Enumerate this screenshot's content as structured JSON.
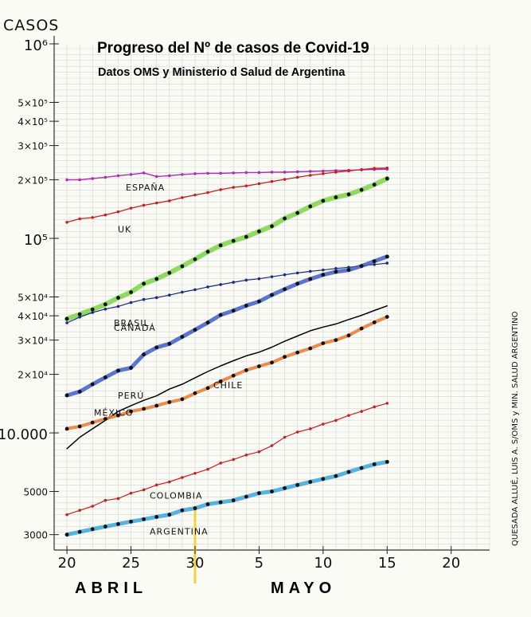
{
  "chart_data": {
    "type": "line",
    "title": "Progreso del Nº de casos de Covid-19",
    "subtitle": "Datos OMS y Ministerio d Salud de Argentina",
    "ylabel": "CASOS",
    "yscale": "log",
    "ylim": [
      2500,
      1000000
    ],
    "y_ticks": [
      {
        "value": 1000000,
        "label": "10⁶"
      },
      {
        "value": 500000,
        "label": "5×10⁵"
      },
      {
        "value": 400000,
        "label": "4×10⁵"
      },
      {
        "value": 300000,
        "label": "3×10⁵"
      },
      {
        "value": 200000,
        "label": "2×10⁵"
      },
      {
        "value": 100000,
        "label": "10⁵"
      },
      {
        "value": 50000,
        "label": "5×10⁴"
      },
      {
        "value": 40000,
        "label": "4×10⁴"
      },
      {
        "value": 30000,
        "label": "3×10⁴"
      },
      {
        "value": 20000,
        "label": "2×10⁴"
      },
      {
        "value": 10000,
        "label": "10.000"
      },
      {
        "value": 5000,
        "label": "5000"
      },
      {
        "value": 3000,
        "label": "3000"
      }
    ],
    "x_ticks": [
      {
        "date": "2020-04-20",
        "label": "20"
      },
      {
        "date": "2020-04-25",
        "label": "25"
      },
      {
        "date": "2020-04-30",
        "label": "30"
      },
      {
        "date": "2020-05-05",
        "label": "5"
      },
      {
        "date": "2020-05-10",
        "label": "10"
      },
      {
        "date": "2020-05-15",
        "label": "15"
      },
      {
        "date": "2020-05-20",
        "label": "20"
      }
    ],
    "xlim": [
      "2020-04-19",
      "2020-05-23"
    ],
    "month_labels": [
      "ABRIL",
      "MAYO"
    ],
    "marker_date": "2020-04-30",
    "grid": true,
    "side_note": "QUESADA ALLUÉ, LUIS A. S/OMS y MIN. SALUD ARGENTINO",
    "series": [
      {
        "name": "ESPAÑA",
        "color": "#b22ab8",
        "width": 1.4,
        "dots": true,
        "points": [
          [
            "2020-04-20",
            200000
          ],
          [
            "2020-04-21",
            200000
          ],
          [
            "2020-04-22",
            203000
          ],
          [
            "2020-04-23",
            206000
          ],
          [
            "2020-04-24",
            210000
          ],
          [
            "2020-04-25",
            213000
          ],
          [
            "2020-04-26",
            217000
          ],
          [
            "2020-04-27",
            208000
          ],
          [
            "2020-04-28",
            210000
          ],
          [
            "2020-04-29",
            213000
          ],
          [
            "2020-04-30",
            215000
          ],
          [
            "2020-05-01",
            216000
          ],
          [
            "2020-05-02",
            216000
          ],
          [
            "2020-05-03",
            217000
          ],
          [
            "2020-05-04",
            218000
          ],
          [
            "2020-05-05",
            218000
          ],
          [
            "2020-05-06",
            219000
          ],
          [
            "2020-05-07",
            219000
          ],
          [
            "2020-05-08",
            220000
          ],
          [
            "2020-05-09",
            221000
          ],
          [
            "2020-05-10",
            222000
          ],
          [
            "2020-05-11",
            223000
          ],
          [
            "2020-05-12",
            224000
          ],
          [
            "2020-05-13",
            225000
          ],
          [
            "2020-05-14",
            226000
          ],
          [
            "2020-05-15",
            227000
          ]
        ]
      },
      {
        "name": "UK",
        "color": "#c82020",
        "width": 1.3,
        "dots": true,
        "points": [
          [
            "2020-04-20",
            121000
          ],
          [
            "2020-04-21",
            126000
          ],
          [
            "2020-04-22",
            128000
          ],
          [
            "2020-04-23",
            132000
          ],
          [
            "2020-04-24",
            137000
          ],
          [
            "2020-04-25",
            143000
          ],
          [
            "2020-04-26",
            148000
          ],
          [
            "2020-04-27",
            152000
          ],
          [
            "2020-04-28",
            156000
          ],
          [
            "2020-04-29",
            162000
          ],
          [
            "2020-04-30",
            167000
          ],
          [
            "2020-05-01",
            172000
          ],
          [
            "2020-05-02",
            178000
          ],
          [
            "2020-05-03",
            183000
          ],
          [
            "2020-05-04",
            186000
          ],
          [
            "2020-05-05",
            191000
          ],
          [
            "2020-05-06",
            196000
          ],
          [
            "2020-05-07",
            201000
          ],
          [
            "2020-05-08",
            206000
          ],
          [
            "2020-05-09",
            211000
          ],
          [
            "2020-05-10",
            215000
          ],
          [
            "2020-05-11",
            219000
          ],
          [
            "2020-05-12",
            222000
          ],
          [
            "2020-05-13",
            226000
          ],
          [
            "2020-05-14",
            229000
          ],
          [
            "2020-05-15",
            230000
          ]
        ]
      },
      {
        "name": "BRASIL",
        "color": "#7cd34a",
        "width": 6,
        "dots": true,
        "points": [
          [
            "2020-04-20",
            38600
          ],
          [
            "2020-04-21",
            40700
          ],
          [
            "2020-04-22",
            43100
          ],
          [
            "2020-04-23",
            45800
          ],
          [
            "2020-04-24",
            49500
          ],
          [
            "2020-04-25",
            52900
          ],
          [
            "2020-04-26",
            58500
          ],
          [
            "2020-04-27",
            61900
          ],
          [
            "2020-04-28",
            66500
          ],
          [
            "2020-04-29",
            71900
          ],
          [
            "2020-04-30",
            78100
          ],
          [
            "2020-05-01",
            85400
          ],
          [
            "2020-05-02",
            92100
          ],
          [
            "2020-05-03",
            97100
          ],
          [
            "2020-05-04",
            101800
          ],
          [
            "2020-05-05",
            108600
          ],
          [
            "2020-05-06",
            115500
          ],
          [
            "2020-05-07",
            126600
          ],
          [
            "2020-05-08",
            135100
          ],
          [
            "2020-05-09",
            146000
          ],
          [
            "2020-05-10",
            156000
          ],
          [
            "2020-05-11",
            162600
          ],
          [
            "2020-05-12",
            168300
          ],
          [
            "2020-05-13",
            177600
          ],
          [
            "2020-05-14",
            188900
          ],
          [
            "2020-05-15",
            202900
          ]
        ]
      },
      {
        "name": "CANADÁ",
        "color": "#1c2a80",
        "width": 1.2,
        "dots": true,
        "points": [
          [
            "2020-04-20",
            36800
          ],
          [
            "2020-04-21",
            39400
          ],
          [
            "2020-04-22",
            41600
          ],
          [
            "2020-04-23",
            43300
          ],
          [
            "2020-04-24",
            44700
          ],
          [
            "2020-04-25",
            46800
          ],
          [
            "2020-04-26",
            48500
          ],
          [
            "2020-04-27",
            49600
          ],
          [
            "2020-04-28",
            51100
          ],
          [
            "2020-04-29",
            52900
          ],
          [
            "2020-04-30",
            54500
          ],
          [
            "2020-05-01",
            56300
          ],
          [
            "2020-05-02",
            57900
          ],
          [
            "2020-05-03",
            59500
          ],
          [
            "2020-05-04",
            61000
          ],
          [
            "2020-05-05",
            62000
          ],
          [
            "2020-05-06",
            63500
          ],
          [
            "2020-05-07",
            65000
          ],
          [
            "2020-05-08",
            66400
          ],
          [
            "2020-05-09",
            67700
          ],
          [
            "2020-05-10",
            68800
          ],
          [
            "2020-05-11",
            70000
          ],
          [
            "2020-05-12",
            71000
          ],
          [
            "2020-05-13",
            72300
          ],
          [
            "2020-05-14",
            73400
          ],
          [
            "2020-05-15",
            74600
          ]
        ]
      },
      {
        "name": "PERÚ",
        "color": "#3e5ec9",
        "width": 5,
        "dots": true,
        "points": [
          [
            "2020-04-20",
            15600
          ],
          [
            "2020-04-21",
            16300
          ],
          [
            "2020-04-22",
            17800
          ],
          [
            "2020-04-23",
            19300
          ],
          [
            "2020-04-24",
            20900
          ],
          [
            "2020-04-25",
            21600
          ],
          [
            "2020-04-26",
            25300
          ],
          [
            "2020-04-27",
            27500
          ],
          [
            "2020-04-28",
            28700
          ],
          [
            "2020-04-29",
            31200
          ],
          [
            "2020-04-30",
            33900
          ],
          [
            "2020-05-01",
            36900
          ],
          [
            "2020-05-02",
            40400
          ],
          [
            "2020-05-03",
            42500
          ],
          [
            "2020-05-04",
            45100
          ],
          [
            "2020-05-05",
            47400
          ],
          [
            "2020-05-06",
            51200
          ],
          [
            "2020-05-07",
            54800
          ],
          [
            "2020-05-08",
            58500
          ],
          [
            "2020-05-09",
            61800
          ],
          [
            "2020-05-10",
            65000
          ],
          [
            "2020-05-11",
            67300
          ],
          [
            "2020-05-12",
            68800
          ],
          [
            "2020-05-13",
            72100
          ],
          [
            "2020-05-14",
            76300
          ],
          [
            "2020-05-15",
            80600
          ]
        ]
      },
      {
        "name": "MÉXICO",
        "color": "#000000",
        "width": 1.5,
        "dots": false,
        "points": [
          [
            "2020-04-20",
            8300
          ],
          [
            "2020-04-21",
            9500
          ],
          [
            "2020-04-22",
            10500
          ],
          [
            "2020-04-23",
            11600
          ],
          [
            "2020-04-24",
            12900
          ],
          [
            "2020-04-25",
            13800
          ],
          [
            "2020-04-26",
            14700
          ],
          [
            "2020-04-27",
            15500
          ],
          [
            "2020-04-28",
            16800
          ],
          [
            "2020-04-29",
            17800
          ],
          [
            "2020-04-30",
            19200
          ],
          [
            "2020-05-01",
            20700
          ],
          [
            "2020-05-02",
            22100
          ],
          [
            "2020-05-03",
            23500
          ],
          [
            "2020-05-04",
            24900
          ],
          [
            "2020-05-05",
            26000
          ],
          [
            "2020-05-06",
            27600
          ],
          [
            "2020-05-07",
            29600
          ],
          [
            "2020-05-08",
            31500
          ],
          [
            "2020-05-09",
            33500
          ],
          [
            "2020-05-10",
            35000
          ],
          [
            "2020-05-11",
            36300
          ],
          [
            "2020-05-12",
            38300
          ],
          [
            "2020-05-13",
            40200
          ],
          [
            "2020-05-14",
            42600
          ],
          [
            "2020-05-15",
            45000
          ]
        ]
      },
      {
        "name": "CHILE",
        "color": "#e8772e",
        "width": 4,
        "dots": true,
        "points": [
          [
            "2020-04-20",
            10500
          ],
          [
            "2020-04-21",
            10800
          ],
          [
            "2020-04-22",
            11300
          ],
          [
            "2020-04-23",
            11800
          ],
          [
            "2020-04-24",
            12300
          ],
          [
            "2020-04-25",
            12900
          ],
          [
            "2020-04-26",
            13300
          ],
          [
            "2020-04-27",
            13800
          ],
          [
            "2020-04-28",
            14400
          ],
          [
            "2020-04-29",
            14900
          ],
          [
            "2020-04-30",
            16000
          ],
          [
            "2020-05-01",
            17000
          ],
          [
            "2020-05-02",
            18400
          ],
          [
            "2020-05-03",
            19700
          ],
          [
            "2020-05-04",
            21000
          ],
          [
            "2020-05-05",
            22000
          ],
          [
            "2020-05-06",
            23000
          ],
          [
            "2020-05-07",
            24600
          ],
          [
            "2020-05-08",
            25900
          ],
          [
            "2020-05-09",
            27200
          ],
          [
            "2020-05-10",
            28900
          ],
          [
            "2020-05-11",
            30000
          ],
          [
            "2020-05-12",
            31700
          ],
          [
            "2020-05-13",
            34400
          ],
          [
            "2020-05-14",
            37000
          ],
          [
            "2020-05-15",
            39500
          ]
        ]
      },
      {
        "name": "COLOMBIA",
        "color": "#c82020",
        "width": 1.2,
        "dots": true,
        "points": [
          [
            "2020-04-20",
            3800
          ],
          [
            "2020-04-21",
            4000
          ],
          [
            "2020-04-22",
            4200
          ],
          [
            "2020-04-23",
            4500
          ],
          [
            "2020-04-24",
            4600
          ],
          [
            "2020-04-25",
            4900
          ],
          [
            "2020-04-26",
            5100
          ],
          [
            "2020-04-27",
            5400
          ],
          [
            "2020-04-28",
            5600
          ],
          [
            "2020-04-29",
            5900
          ],
          [
            "2020-04-30",
            6200
          ],
          [
            "2020-05-01",
            6500
          ],
          [
            "2020-05-02",
            7000
          ],
          [
            "2020-05-03",
            7300
          ],
          [
            "2020-05-04",
            7700
          ],
          [
            "2020-05-05",
            8000
          ],
          [
            "2020-05-06",
            8600
          ],
          [
            "2020-05-07",
            9500
          ],
          [
            "2020-05-08",
            10100
          ],
          [
            "2020-05-09",
            10500
          ],
          [
            "2020-05-10",
            11100
          ],
          [
            "2020-05-11",
            11600
          ],
          [
            "2020-05-12",
            12300
          ],
          [
            "2020-05-13",
            12900
          ],
          [
            "2020-05-14",
            13600
          ],
          [
            "2020-05-15",
            14200
          ]
        ]
      },
      {
        "name": "ARGENTINA",
        "color": "#3ba6dd",
        "width": 5,
        "dots": true,
        "points": [
          [
            "2020-04-20",
            3000
          ],
          [
            "2020-04-21",
            3100
          ],
          [
            "2020-04-22",
            3200
          ],
          [
            "2020-04-23",
            3300
          ],
          [
            "2020-04-24",
            3400
          ],
          [
            "2020-04-25",
            3500
          ],
          [
            "2020-04-26",
            3600
          ],
          [
            "2020-04-27",
            3700
          ],
          [
            "2020-04-28",
            3800
          ],
          [
            "2020-04-29",
            4000
          ],
          [
            "2020-04-30",
            4100
          ],
          [
            "2020-05-01",
            4300
          ],
          [
            "2020-05-02",
            4400
          ],
          [
            "2020-05-03",
            4500
          ],
          [
            "2020-05-04",
            4700
          ],
          [
            "2020-05-05",
            4900
          ],
          [
            "2020-05-06",
            5000
          ],
          [
            "2020-05-07",
            5200
          ],
          [
            "2020-05-08",
            5400
          ],
          [
            "2020-05-09",
            5600
          ],
          [
            "2020-05-10",
            5800
          ],
          [
            "2020-05-11",
            6000
          ],
          [
            "2020-05-12",
            6300
          ],
          [
            "2020-05-13",
            6600
          ],
          [
            "2020-05-14",
            6900
          ],
          [
            "2020-05-15",
            7100
          ]
        ]
      }
    ]
  }
}
